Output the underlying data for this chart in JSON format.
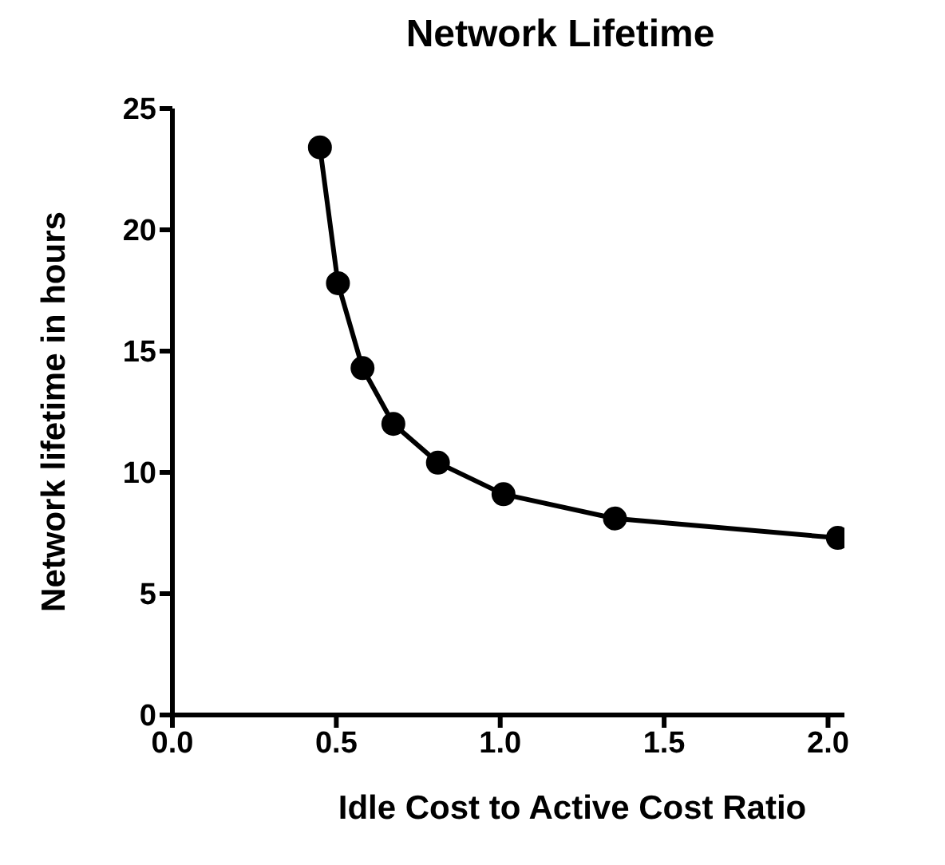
{
  "chart_data": {
    "type": "line",
    "title": "Network Lifetime",
    "xlabel": "Idle Cost to Active Cost Ratio",
    "ylabel": "Network lifetime in hours",
    "x": [
      0.45,
      0.505,
      0.58,
      0.674,
      0.81,
      1.01,
      1.35,
      2.03
    ],
    "series": [
      {
        "color": "#000000",
        "values": [
          23.4,
          17.8,
          14.3,
          12.0,
          10.4,
          9.1,
          8.1,
          7.3
        ]
      }
    ],
    "xlim": [
      0,
      2.05
    ],
    "xticks": [
      {
        "value": 0,
        "label": "0.0"
      },
      0.5,
      {
        "value": 1,
        "label": "1.0"
      },
      1.5,
      {
        "value": 2,
        "label": "2.0"
      }
    ],
    "ylim": [
      0,
      25
    ],
    "yticks": [
      0,
      5,
      10,
      15,
      20,
      25
    ],
    "grid": false,
    "marker": "circle",
    "line_style": "solid"
  }
}
